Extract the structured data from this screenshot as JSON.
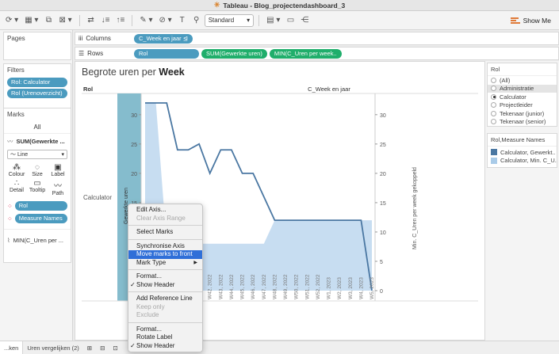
{
  "window": {
    "title": "Tableau - Blog_projectendashboard_3"
  },
  "toolbar": {
    "mark_style": "Standard",
    "show_me": "Show Me"
  },
  "pages": {
    "label": "Pages"
  },
  "columns_shelf": {
    "label": "Columns",
    "pills": [
      "C_Week en jaar"
    ]
  },
  "rows_shelf": {
    "label": "Rows",
    "pills": [
      "Rol",
      "SUM(Gewerkte uren)",
      "MIN(C_Uren per week.."
    ]
  },
  "filters": {
    "label": "Filters",
    "items": [
      "Rol: Calculator",
      "Rol (Urenoverzicht)"
    ]
  },
  "marks": {
    "label": "Marks",
    "all": "All",
    "measure": "SUM(Gewerkte ...",
    "mark_type": "Line",
    "buttons": [
      "Colour",
      "Size",
      "Label",
      "Detail",
      "Tooltip",
      "Path"
    ],
    "pills": [
      "Rol",
      "Measure Names"
    ],
    "secondary": "MIN(C_Uren per ..."
  },
  "viz": {
    "title_prefix": "Begrote uren per",
    "title_bold": "Week",
    "row_header": "Rol",
    "col_header": "C_Week en jaar",
    "row_value": "Calculator"
  },
  "chart_data": {
    "type": "line",
    "x": [
      "W36, 2022",
      "W37, 2022",
      "W38, 2022",
      "W39, 2022",
      "W40, 2022",
      "W41, 2022",
      "W42, 2022",
      "W43, 2022",
      "W44, 2022",
      "W45, 2022",
      "W46, 2022",
      "W47, 2022",
      "W48, 2022",
      "W49, 2022",
      "W50, 2022",
      "W51, 2022",
      "W52, 2022",
      "W1, 2023",
      "W2, 2023",
      "W3, 2023",
      "W4, 2023",
      "W5, 2023"
    ],
    "x_tick_labels_visible": [
      "W39, 2022",
      "W40, 2022",
      "W41, 2022",
      "W42, 2022",
      "W43, 2022",
      "W44, 2022",
      "W45, 2022",
      "W46, 2022",
      "W47, 2022",
      "W48, 2022",
      "W49, 2022",
      "W50, 2022",
      "W51, 2022",
      "W52, 2022",
      "W1, 2023",
      "W2, 2023",
      "W3, 2023",
      "W4, 2023",
      "W5, 2023"
    ],
    "series": [
      {
        "name": "Calculator, Gewerkt..",
        "values": [
          32,
          32,
          32,
          24,
          24,
          25,
          20,
          24,
          24,
          20,
          20,
          16,
          12,
          12,
          12,
          12,
          12,
          12,
          12,
          12,
          12,
          0
        ]
      },
      {
        "name": "Calculator, Min. C_U..",
        "values": [
          32,
          32,
          8,
          8,
          8,
          8,
          8,
          8,
          8,
          8,
          8,
          8,
          12,
          12,
          12,
          12,
          12,
          12,
          12,
          12,
          12,
          12
        ]
      }
    ],
    "ylabel": "Gewerkte uren",
    "y2label": "Min. C_Uren per week gekoppeld",
    "ylim": [
      0,
      32
    ],
    "y_ticks": [
      "30",
      "25",
      "20",
      "15",
      "10"
    ],
    "y2_ticks": [
      "30",
      "25",
      "20",
      "15",
      "10",
      "5",
      "0"
    ],
    "colors": {
      "line": "#4a77a2",
      "area": "#bdd7ee"
    },
    "grid": false
  },
  "context_menu": {
    "items": [
      {
        "label": "Edit Axis...",
        "disabled": false
      },
      {
        "label": "Clear Axis Range",
        "disabled": true
      },
      {
        "sep": true
      },
      {
        "label": "Select Marks",
        "disabled": false
      },
      {
        "sep": true
      },
      {
        "label": "Synchronise Axis",
        "disabled": false
      },
      {
        "label": "Move marks to front",
        "selected": true
      },
      {
        "label": "Mark Type",
        "submenu": true
      },
      {
        "sep": true
      },
      {
        "label": "Format...",
        "disabled": false
      },
      {
        "label": "Show Header",
        "checked": true
      },
      {
        "sep": true
      },
      {
        "label": "Add Reference Line",
        "disabled": false
      },
      {
        "label": "Keep only",
        "disabled": true
      },
      {
        "label": "Exclude",
        "disabled": true
      },
      {
        "sep": true
      },
      {
        "label": "Format...",
        "disabled": false
      },
      {
        "label": "Rotate Label",
        "disabled": false
      },
      {
        "label": "Show Header",
        "checked": true
      }
    ]
  },
  "legend_rol": {
    "title": "Rol",
    "items": [
      "(All)",
      "Administratie",
      "Calculator",
      "Projectleider",
      "Tekenaar (junior)",
      "Tekenaar (senior)"
    ],
    "selected": "Calculator"
  },
  "legend_measures": {
    "title": "Rol,Measure Names",
    "items": [
      {
        "label": "Calculator, Gewerkt..",
        "color": "#4a77a2"
      },
      {
        "label": "Calculator, Min. C_U..",
        "color": "#a9cbe8"
      }
    ]
  },
  "statusbar": {
    "tabs": [
      "...ken",
      "Uren vergelijken (2)"
    ]
  }
}
